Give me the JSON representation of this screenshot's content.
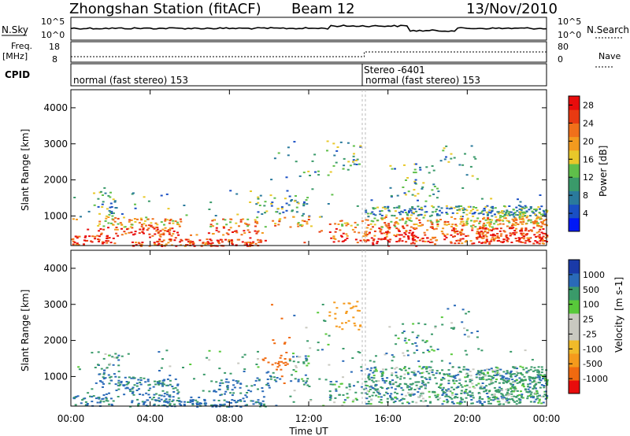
{
  "header": {
    "station": "Zhongshan Station (fitACF)",
    "beam": "Beam 12",
    "date": "13/Nov/2010"
  },
  "strip": {
    "nsky_label": "N.Sky",
    "nsky_ticks": [
      "10^5",
      "10^0"
    ],
    "nsearch_label": "N.Search",
    "nsearch_ticks": [
      "10^5",
      "10^0"
    ],
    "freq_label": "Freq.",
    "freq_unit": "[MHz]",
    "freq_ticks": [
      "18",
      "8"
    ],
    "nave_label": "Nave",
    "nave_ticks": [
      "80",
      "0"
    ],
    "cpid_label": "CPID",
    "cpid_segments": [
      "normal (fast stereo) 153",
      "normal (fast stereo) 153"
    ],
    "cpid_change": "Stereo -6401"
  },
  "colors": {
    "power": [
      "#0018f5",
      "#1a4fc4",
      "#2a7a9c",
      "#3a9a6a",
      "#5fbf4a",
      "#e8c82a",
      "#f39a1e",
      "#f0701a",
      "#e83a12",
      "#e80c0c"
    ],
    "velocity": [
      "#e80c0c",
      "#f06a10",
      "#f59a1c",
      "#f0bb2a",
      "#c9c9c0",
      "#c9c9c0",
      "#58c93a",
      "#3a9a6a",
      "#2a6ab8",
      "#1a3aa8"
    ]
  },
  "chart_data": [
    {
      "type": "heatmap",
      "panel": "power",
      "ylabel": "Slant Range [km]",
      "y_ticks": [
        "4000",
        "3000",
        "2000",
        "1000"
      ],
      "ylim": [
        180,
        4500
      ],
      "x_ticks": [
        "00:00",
        "04:00",
        "08:00",
        "12:00",
        "16:00",
        "20:00",
        "00:00"
      ],
      "xlim": [
        0,
        24
      ],
      "colorbar_label": "Power [dB]",
      "colorbar_ticks": [
        "28",
        "24",
        "20",
        "16",
        "12",
        "8",
        "4"
      ],
      "colorbar_range": [
        0,
        30
      ]
    },
    {
      "type": "heatmap",
      "panel": "velocity",
      "ylabel": "Slant Range [km]",
      "y_ticks": [
        "4000",
        "3000",
        "2000",
        "1000"
      ],
      "ylim": [
        180,
        4500
      ],
      "x_ticks": [
        "00:00",
        "04:00",
        "08:00",
        "12:00",
        "16:00",
        "20:00",
        "00:00"
      ],
      "xlim": [
        0,
        24
      ],
      "xlabel": "Time UT",
      "colorbar_label": "Velocity",
      "colorbar_unit": "[m s-1]",
      "colorbar_ticks": [
        "1000",
        "500",
        "100",
        "25",
        "-25",
        "-100",
        "-500",
        "-1000"
      ]
    }
  ]
}
